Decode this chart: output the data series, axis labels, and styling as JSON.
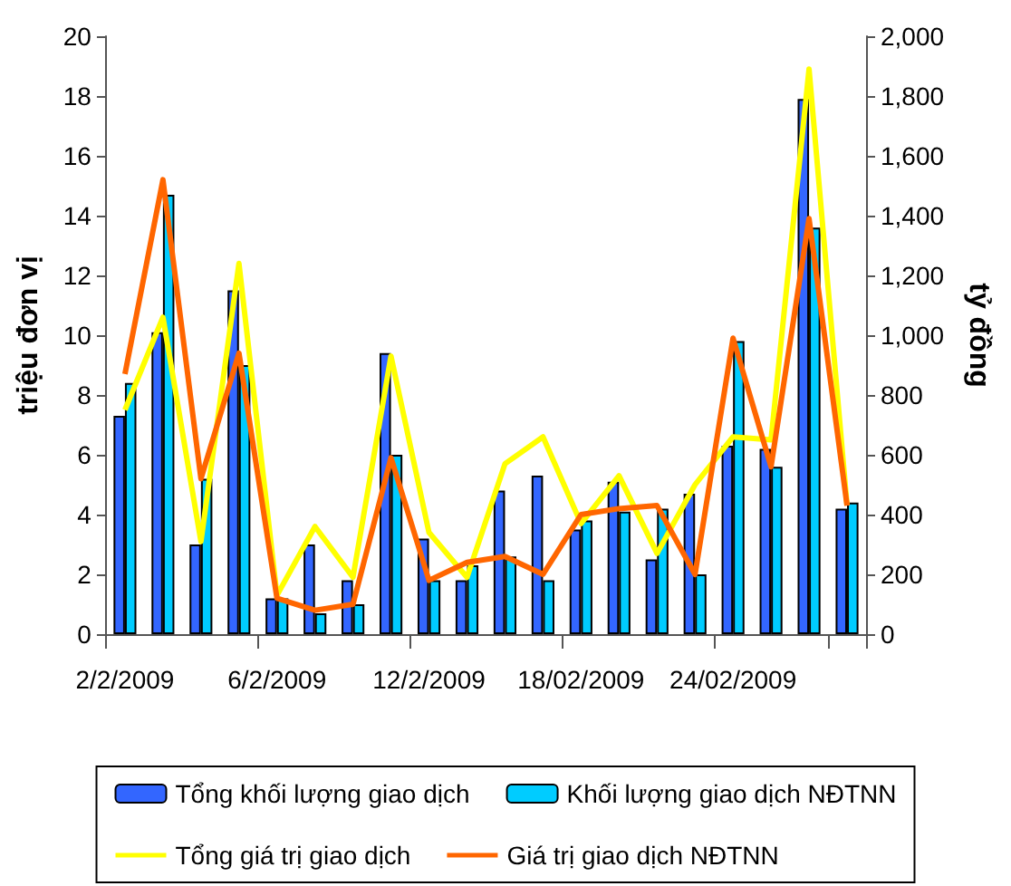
{
  "chart_data": {
    "type": "bar",
    "ylabel": "triệu đơn vị",
    "y2label": "tỷ đồng",
    "categories": [
      "2/2/2009",
      null,
      null,
      null,
      "6/2/2009",
      null,
      null,
      null,
      "12/2/2009",
      null,
      null,
      null,
      "18/02/2009",
      null,
      null,
      null,
      "24/02/2009",
      null,
      null,
      null
    ],
    "series": [
      {
        "name": "Tổng khối lượng giao dịch",
        "color": "#3366ff",
        "values": [
          7.3,
          10.1,
          3.0,
          11.5,
          1.2,
          3.0,
          1.8,
          9.4,
          3.2,
          1.8,
          4.8,
          5.3,
          3.5,
          5.1,
          2.5,
          4.7,
          6.3,
          6.2,
          17.9,
          4.2
        ]
      },
      {
        "name": "Khối lượng giao dịch NĐTNN",
        "color": "#00ccff",
        "values": [
          8.4,
          14.7,
          5.2,
          9.0,
          1.2,
          0.7,
          1.0,
          6.0,
          1.8,
          2.3,
          2.6,
          1.8,
          3.8,
          4.1,
          4.2,
          2.0,
          9.8,
          5.6,
          13.6,
          4.4
        ]
      },
      {
        "name": "Tổng giá trị giao dịch",
        "type": "line",
        "axis": "y2",
        "color": "#ffff00",
        "values": [
          750,
          1060,
          310,
          1240,
          130,
          360,
          190,
          930,
          340,
          190,
          570,
          660,
          370,
          530,
          270,
          500,
          660,
          650,
          1890,
          430
        ]
      },
      {
        "name": "Giá trị giao dịch NĐTNN",
        "type": "line",
        "axis": "y2",
        "color": "#ff6600",
        "values": [
          870,
          1520,
          520,
          940,
          120,
          80,
          100,
          590,
          180,
          240,
          260,
          200,
          400,
          420,
          430,
          200,
          990,
          560,
          1390,
          430
        ]
      }
    ],
    "ylim": [
      0,
      20
    ],
    "yticks": [
      0,
      2,
      4,
      6,
      8,
      10,
      12,
      14,
      16,
      18,
      20
    ],
    "y2lim": [
      0,
      2000
    ],
    "y2ticks": [
      0,
      200,
      400,
      600,
      800,
      {
        "value": 1000,
        "label": "1,000"
      },
      {
        "value": 1200,
        "label": "1,200"
      },
      {
        "value": 1400,
        "label": "1,400"
      },
      {
        "value": 1600,
        "label": "1,600"
      },
      {
        "value": 1800,
        "label": "1,800"
      },
      {
        "value": 2000,
        "label": "2,000"
      }
    ],
    "grid": false,
    "legend": "bottom",
    "marker": "none",
    "line_style": "solid"
  }
}
